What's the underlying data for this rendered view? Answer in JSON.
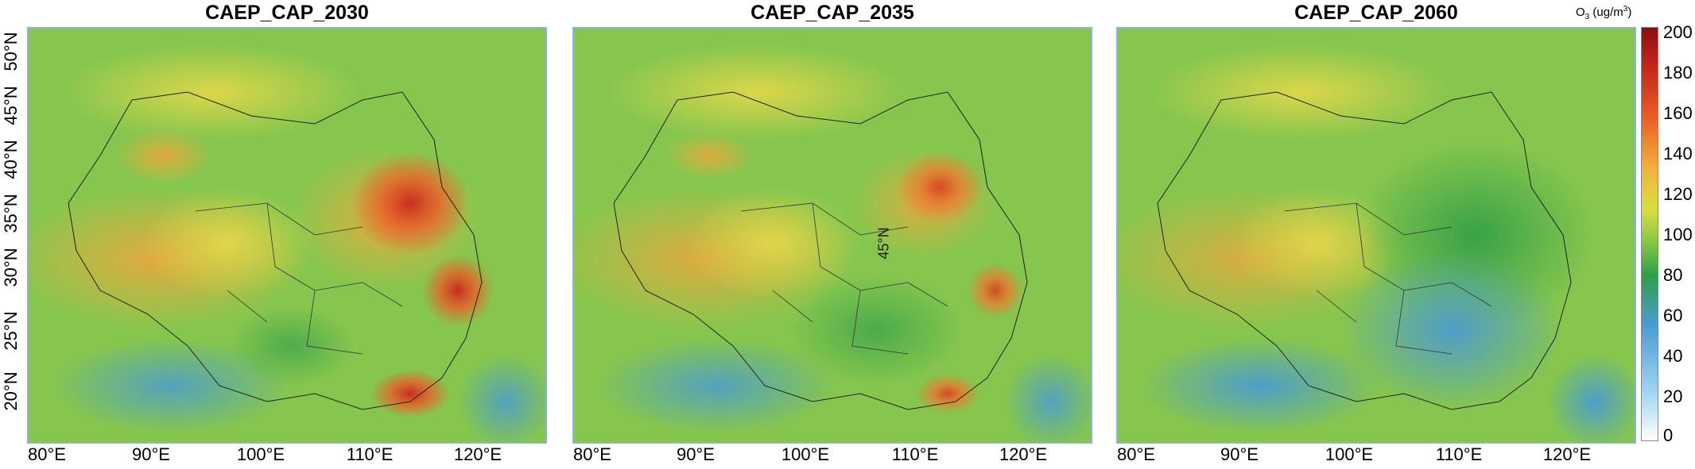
{
  "panels": [
    {
      "title": "CAEP_CAP_2030",
      "scenario": "2030"
    },
    {
      "title": "CAEP_CAP_2035",
      "scenario": "2035"
    },
    {
      "title": "CAEP_CAP_2060",
      "scenario": "2060"
    }
  ],
  "latitude_labels": [
    "50°N",
    "45°N",
    "40°N",
    "35°N",
    "30°N",
    "25°N",
    "20°N"
  ],
  "longitude_labels": [
    "80°E",
    "90°E",
    "100°E",
    "110°E",
    "120°E"
  ],
  "annotation": "45°N",
  "colorbar": {
    "unit_prefix": "O",
    "unit_sub": "3",
    "unit_suffix": " (ug/m",
    "unit_sup": "3",
    "unit_close": ")",
    "ticks": [
      "200",
      "180",
      "160",
      "140",
      "120",
      "100",
      "80",
      "60",
      "40",
      "20",
      "0"
    ],
    "min": 0,
    "max": 200
  },
  "colors": {
    "low": "#4b9bd1",
    "mid": "#7cc24a",
    "high": "#c8271c",
    "frame": "#8db3d6"
  }
}
